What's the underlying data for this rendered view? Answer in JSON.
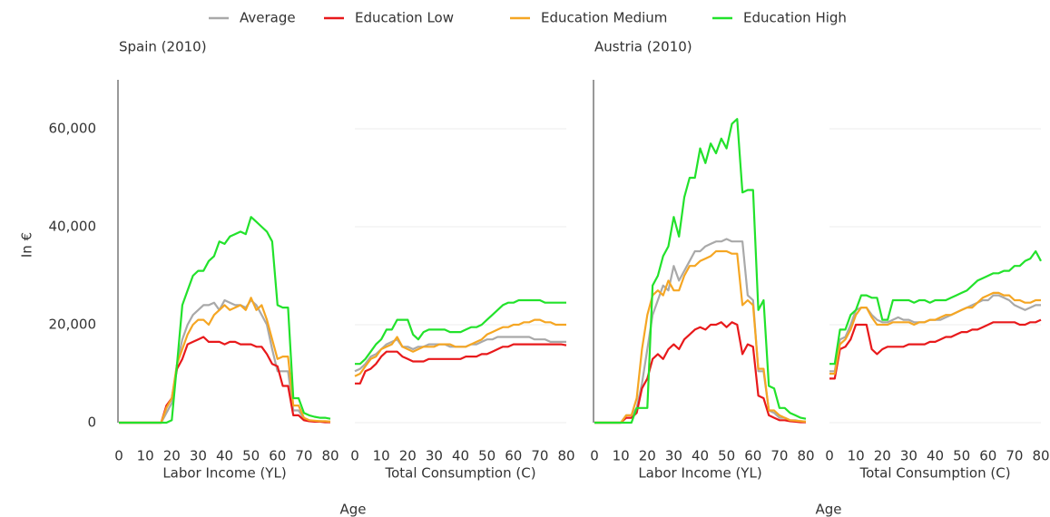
{
  "chart_data": [
    {
      "type": "line",
      "title": "Spain (2010)",
      "xlabel": "Labor Income (YL)",
      "x_axis_title": "Age",
      "ylabel": "In €",
      "xlim": [
        0,
        80
      ],
      "xticks": [
        0,
        10,
        20,
        30,
        40,
        50,
        60,
        70,
        80
      ],
      "ylim": [
        0,
        70000
      ],
      "yticks": [
        0,
        {
          "value": 20000,
          "label": "20,000"
        },
        {
          "value": 40000,
          "label": "40,000"
        },
        {
          "value": 60000,
          "label": "60,000"
        }
      ],
      "grid": false,
      "axis_line": true,
      "x": [
        0,
        2,
        4,
        6,
        8,
        10,
        12,
        14,
        16,
        18,
        20,
        22,
        24,
        26,
        28,
        30,
        32,
        34,
        36,
        38,
        40,
        42,
        44,
        46,
        48,
        50,
        52,
        54,
        56,
        58,
        60,
        62,
        64,
        66,
        68,
        70,
        72,
        74,
        76,
        78,
        80
      ],
      "series": [
        {
          "name": "Average",
          "color": "#a9a9a9",
          "values": [
            0,
            0,
            0,
            0,
            0,
            0,
            0,
            0,
            0,
            2000,
            4000,
            12000,
            17000,
            20000,
            22000,
            23000,
            24000,
            24000,
            24500,
            23000,
            25000,
            24500,
            24000,
            24000,
            23500,
            25000,
            24000,
            22000,
            20000,
            15000,
            10500,
            10500,
            10500,
            2500,
            2500,
            800,
            500,
            300,
            300,
            200,
            200
          ]
        },
        {
          "name": "Education Low",
          "color": "#e8191b",
          "values": [
            0,
            0,
            0,
            0,
            0,
            0,
            0,
            0,
            0,
            3500,
            5000,
            11000,
            13000,
            16000,
            16500,
            17000,
            17500,
            16500,
            16500,
            16500,
            16000,
            16500,
            16500,
            16000,
            16000,
            16000,
            15500,
            15500,
            14000,
            12000,
            11500,
            7500,
            7500,
            1500,
            1500,
            500,
            300,
            200,
            200,
            100,
            100
          ]
        },
        {
          "name": "Education Medium",
          "color": "#f5a623",
          "values": [
            0,
            0,
            0,
            0,
            0,
            0,
            0,
            0,
            0,
            3000,
            5000,
            12000,
            15000,
            18000,
            20000,
            21000,
            21000,
            20000,
            22000,
            23000,
            24000,
            23000,
            23500,
            24000,
            23000,
            25500,
            23000,
            24000,
            21000,
            17000,
            13000,
            13500,
            13500,
            3500,
            3500,
            1000,
            500,
            400,
            300,
            300,
            200
          ]
        },
        {
          "name": "Education High",
          "color": "#22e22b",
          "values": [
            0,
            0,
            0,
            0,
            0,
            0,
            0,
            0,
            0,
            0,
            500,
            12000,
            24000,
            27000,
            30000,
            31000,
            31000,
            33000,
            34000,
            37000,
            36500,
            38000,
            38500,
            39000,
            38500,
            42000,
            41000,
            40000,
            39000,
            37000,
            24000,
            23500,
            23500,
            5000,
            5000,
            2000,
            1500,
            1200,
            1000,
            1000,
            800
          ]
        }
      ]
    },
    {
      "type": "line",
      "xlabel": "Total Consumption (C)",
      "xlim": [
        0,
        80
      ],
      "xticks": [
        0,
        10,
        20,
        30,
        40,
        50,
        60,
        70,
        80
      ],
      "ylim": [
        0,
        70000
      ],
      "yticks": [
        0,
        20000,
        40000,
        60000
      ],
      "grid": true,
      "axis_line": false,
      "x": [
        0,
        2,
        4,
        6,
        8,
        10,
        12,
        14,
        16,
        18,
        20,
        22,
        24,
        26,
        28,
        30,
        32,
        34,
        36,
        38,
        40,
        42,
        44,
        46,
        48,
        50,
        52,
        54,
        56,
        58,
        60,
        62,
        64,
        66,
        68,
        70,
        72,
        74,
        76,
        78,
        80
      ],
      "series": [
        {
          "color": "#a9a9a9",
          "values": [
            10500,
            11000,
            12000,
            13500,
            14000,
            15000,
            16000,
            16500,
            17000,
            15500,
            15500,
            15000,
            15500,
            15500,
            16000,
            16000,
            16000,
            16000,
            15500,
            15500,
            15500,
            15500,
            16000,
            16000,
            16500,
            17000,
            17000,
            17500,
            17500,
            17500,
            17500,
            17500,
            17500,
            17500,
            17000,
            17000,
            17000,
            16500,
            16500,
            16500,
            16500
          ]
        },
        {
          "color": "#e8191b",
          "values": [
            8000,
            8000,
            10500,
            11000,
            12000,
            13500,
            14500,
            14500,
            14500,
            13500,
            13000,
            12500,
            12500,
            12500,
            13000,
            13000,
            13000,
            13000,
            13000,
            13000,
            13000,
            13500,
            13500,
            13500,
            14000,
            14000,
            14500,
            15000,
            15500,
            15500,
            16000,
            16000,
            16000,
            16000,
            16000,
            16000,
            16000,
            16000,
            16000,
            16000,
            15800
          ]
        },
        {
          "color": "#f5a623",
          "values": [
            9500,
            10000,
            11500,
            13000,
            13500,
            15000,
            15500,
            16000,
            17500,
            15500,
            15000,
            14500,
            15000,
            15500,
            15500,
            15500,
            16000,
            16000,
            16000,
            15500,
            15500,
            15500,
            16000,
            16500,
            17000,
            18000,
            18500,
            19000,
            19500,
            19500,
            20000,
            20000,
            20500,
            20500,
            21000,
            21000,
            20500,
            20500,
            20000,
            20000,
            20000
          ]
        },
        {
          "color": "#22e22b",
          "values": [
            12000,
            12000,
            13000,
            14500,
            16000,
            17000,
            19000,
            19000,
            21000,
            21000,
            21000,
            18000,
            17000,
            18500,
            19000,
            19000,
            19000,
            19000,
            18500,
            18500,
            18500,
            19000,
            19500,
            19500,
            20000,
            21000,
            22000,
            23000,
            24000,
            24500,
            24500,
            25000,
            25000,
            25000,
            25000,
            25000,
            24500,
            24500,
            24500,
            24500,
            24500
          ]
        }
      ]
    },
    {
      "type": "line",
      "title": "Austria (2010)",
      "xlabel": "Labor Income (YL)",
      "x_axis_title": "Age",
      "xlim": [
        0,
        80
      ],
      "xticks": [
        0,
        10,
        20,
        30,
        40,
        50,
        60,
        70,
        80
      ],
      "ylim": [
        0,
        70000
      ],
      "grid": false,
      "axis_line": true,
      "x": [
        0,
        2,
        4,
        6,
        8,
        10,
        12,
        14,
        16,
        18,
        20,
        22,
        24,
        26,
        28,
        30,
        32,
        34,
        36,
        38,
        40,
        42,
        44,
        46,
        48,
        50,
        52,
        54,
        56,
        58,
        60,
        62,
        64,
        66,
        68,
        70,
        72,
        74,
        76,
        78,
        80
      ],
      "series": [
        {
          "color": "#a9a9a9",
          "values": [
            0,
            0,
            0,
            0,
            0,
            0,
            1500,
            1500,
            3000,
            8000,
            15000,
            22000,
            25000,
            28000,
            27000,
            32000,
            29000,
            31000,
            33000,
            35000,
            35000,
            36000,
            36500,
            37000,
            37000,
            37500,
            37000,
            37000,
            37000,
            26000,
            25000,
            10500,
            10500,
            2500,
            2000,
            1000,
            1000,
            500,
            500,
            300,
            200
          ]
        },
        {
          "color": "#e8191b",
          "values": [
            0,
            0,
            0,
            0,
            0,
            0,
            1000,
            1000,
            2000,
            7000,
            9000,
            13000,
            14000,
            13000,
            15000,
            16000,
            15000,
            17000,
            18000,
            19000,
            19500,
            19000,
            20000,
            20000,
            20500,
            19500,
            20500,
            20000,
            14000,
            16000,
            15500,
            5500,
            5000,
            1500,
            1000,
            500,
            500,
            300,
            200,
            100,
            100
          ]
        },
        {
          "color": "#f5a623",
          "values": [
            0,
            0,
            0,
            0,
            0,
            0,
            1500,
            1500,
            5000,
            15000,
            22000,
            26000,
            27000,
            26000,
            29000,
            27000,
            27000,
            30000,
            32000,
            32000,
            33000,
            33500,
            34000,
            35000,
            35000,
            35000,
            34500,
            34500,
            24000,
            25000,
            24000,
            11000,
            11000,
            2500,
            2500,
            1500,
            1000,
            500,
            400,
            300,
            200
          ]
        },
        {
          "color": "#22e22b",
          "values": [
            0,
            0,
            0,
            0,
            0,
            0,
            0,
            0,
            3000,
            3000,
            3000,
            28000,
            30000,
            34000,
            36000,
            42000,
            38000,
            46000,
            50000,
            50000,
            56000,
            53000,
            57000,
            55000,
            58000,
            56000,
            61000,
            62000,
            47000,
            47500,
            47500,
            23000,
            25000,
            7500,
            7000,
            3000,
            3000,
            2000,
            1500,
            1000,
            800
          ]
        }
      ]
    },
    {
      "type": "line",
      "xlabel": "Total Consumption (C)",
      "xlim": [
        0,
        80
      ],
      "xticks": [
        0,
        10,
        20,
        30,
        40,
        50,
        60,
        70,
        80
      ],
      "ylim": [
        0,
        70000
      ],
      "yticks": [
        0,
        20000,
        40000,
        60000
      ],
      "grid": true,
      "axis_line": false,
      "x": [
        0,
        2,
        4,
        6,
        8,
        10,
        12,
        14,
        16,
        18,
        20,
        22,
        24,
        26,
        28,
        30,
        32,
        34,
        36,
        38,
        40,
        42,
        44,
        46,
        48,
        50,
        52,
        54,
        56,
        58,
        60,
        62,
        64,
        66,
        68,
        70,
        72,
        74,
        76,
        78,
        80
      ],
      "series": [
        {
          "color": "#a9a9a9",
          "values": [
            10500,
            10500,
            17000,
            17500,
            20000,
            23000,
            23500,
            23500,
            22000,
            21000,
            20500,
            20500,
            21000,
            21500,
            21000,
            21000,
            20500,
            20500,
            20500,
            21000,
            21000,
            21000,
            21500,
            22000,
            22500,
            23000,
            23500,
            24000,
            24500,
            25000,
            25000,
            26000,
            26000,
            25500,
            25000,
            24000,
            23500,
            23000,
            23500,
            24000,
            24000
          ]
        },
        {
          "color": "#e8191b",
          "values": [
            9000,
            9000,
            15000,
            15500,
            17000,
            20000,
            20000,
            20000,
            15000,
            14000,
            15000,
            15500,
            15500,
            15500,
            15500,
            16000,
            16000,
            16000,
            16000,
            16500,
            16500,
            17000,
            17500,
            17500,
            18000,
            18500,
            18500,
            19000,
            19000,
            19500,
            20000,
            20500,
            20500,
            20500,
            20500,
            20500,
            20000,
            20000,
            20500,
            20500,
            21000
          ]
        },
        {
          "color": "#f5a623",
          "values": [
            10000,
            10000,
            16000,
            17000,
            19000,
            22000,
            23500,
            23500,
            21500,
            20000,
            20000,
            20000,
            20500,
            20500,
            20500,
            20500,
            20000,
            20500,
            20500,
            21000,
            21000,
            21500,
            22000,
            22000,
            22500,
            23000,
            23500,
            23500,
            24500,
            25500,
            26000,
            26500,
            26500,
            26000,
            26000,
            25000,
            25000,
            24500,
            24500,
            25000,
            25000
          ]
        },
        {
          "color": "#22e22b",
          "values": [
            12000,
            12000,
            19000,
            19000,
            22000,
            23000,
            26000,
            26000,
            25500,
            25500,
            21000,
            21000,
            25000,
            25000,
            25000,
            25000,
            24500,
            25000,
            25000,
            24500,
            25000,
            25000,
            25000,
            25500,
            26000,
            26500,
            27000,
            28000,
            29000,
            29500,
            30000,
            30500,
            30500,
            31000,
            31000,
            32000,
            32000,
            33000,
            33500,
            35000,
            33000
          ]
        }
      ]
    }
  ]
}
